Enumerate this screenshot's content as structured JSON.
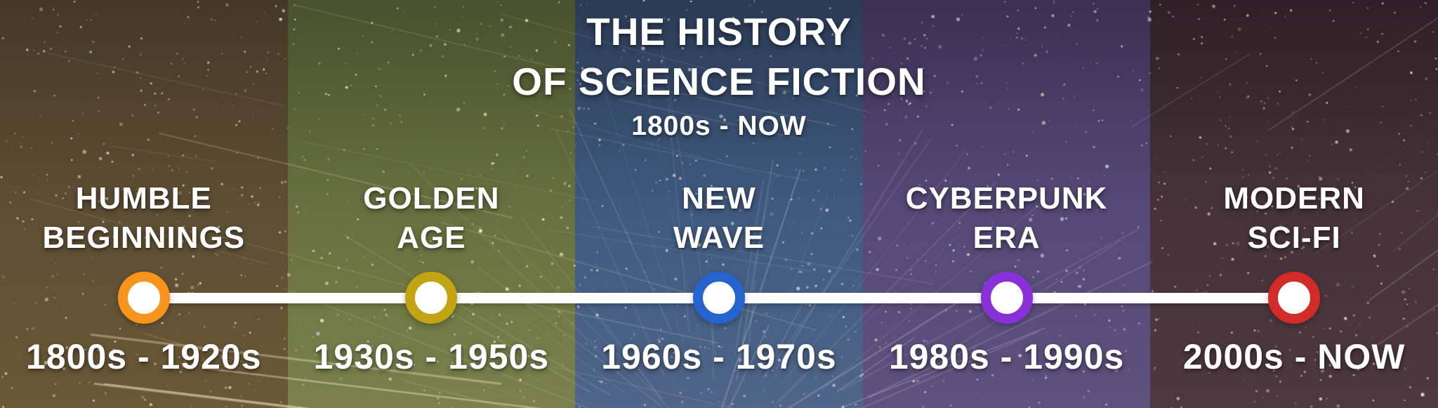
{
  "header": {
    "title_line1": "THE HISTORY",
    "title_line2": "OF SCIENCE FICTION",
    "subtitle": "1800s - NOW"
  },
  "timeline": {
    "line_color": "#ffffff",
    "text_color": "#ffffff"
  },
  "eras": [
    {
      "title_line1": "HUMBLE",
      "title_line2": "BEGINNINGS",
      "years": "1800s - 1920s",
      "marker_color": "#F7941D",
      "band": {
        "top": "#443827",
        "mid": "#5e4e33",
        "bottom": "#6a5936"
      }
    },
    {
      "title_line1": "GOLDEN",
      "title_line2": "AGE",
      "years": "1930s - 1950s",
      "marker_color": "#C3A413",
      "band": {
        "top": "#49512d",
        "mid": "#68713f",
        "bottom": "#7a814d"
      }
    },
    {
      "title_line1": "NEW",
      "title_line2": "WAVE",
      "years": "1960s - 1970s",
      "marker_color": "#2563CE",
      "band": {
        "top": "#2b3b55",
        "mid": "#3f5a80",
        "bottom": "#4f6589"
      }
    },
    {
      "title_line1": "CYBERPUNK",
      "title_line2": "ERA",
      "years": "1980s - 1990s",
      "marker_color": "#8A30D8",
      "band": {
        "top": "#3a3053",
        "mid": "#544a78",
        "bottom": "#5d527e"
      }
    },
    {
      "title_line1": "MODERN",
      "title_line2": "SCI-FI",
      "years": "2000s - NOW",
      "marker_color": "#D32B27",
      "band": {
        "top": "#2e2026",
        "mid": "#453339",
        "bottom": "#4d383f"
      }
    }
  ],
  "background": {
    "star_colors": [
      "#ffffff",
      "#ffe9c8",
      "#ffd9e8",
      "#d8e4ff",
      "#ffefa8"
    ],
    "streak_color": "#ffffff",
    "streak_warm_color": "#ffeecc"
  }
}
